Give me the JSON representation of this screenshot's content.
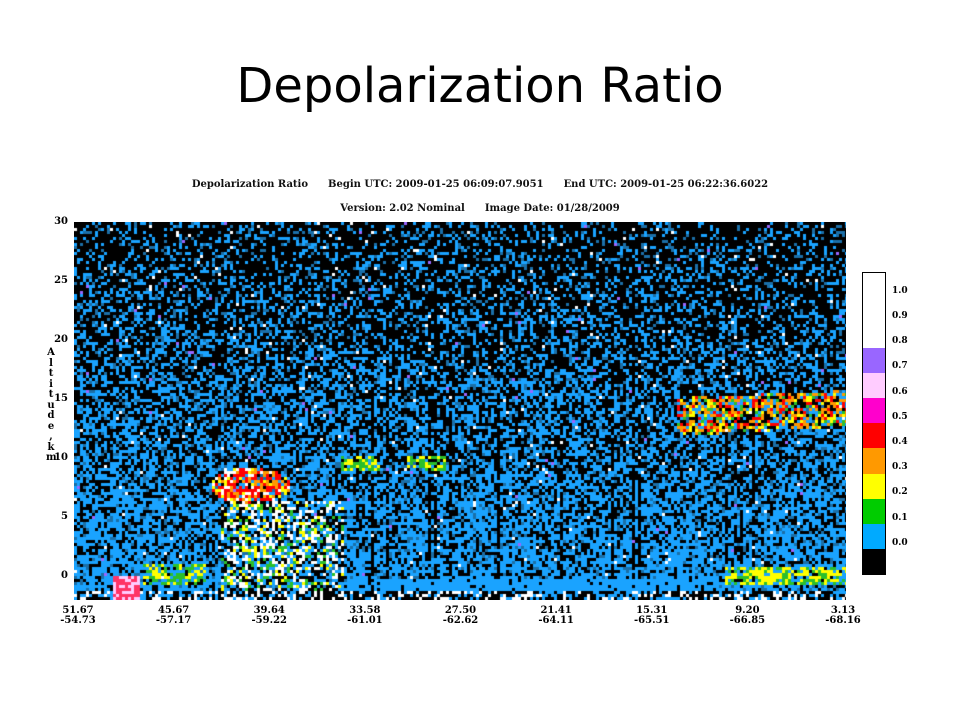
{
  "slide_title": "Depolarization Ratio",
  "header": {
    "product": "Depolarization Ratio",
    "begin": "Begin UTC: 2009-01-25 06:09:07.9051",
    "end": "End UTC: 2009-01-25 06:22:36.6022",
    "version": "Version: 2.02 Nominal",
    "image_date": "Image Date: 01/28/2009"
  },
  "chart_data": {
    "type": "heatmap",
    "title": "Depolarization Ratio",
    "ylabel": "Altitude, km",
    "ylim": [
      -2,
      30
    ],
    "yticks": [
      "30",
      "25",
      "20",
      "15",
      "10",
      "5",
      "0"
    ],
    "xticks": [
      {
        "lat": "51.67",
        "lon": "-54.73"
      },
      {
        "lat": "45.67",
        "lon": "-57.17"
      },
      {
        "lat": "39.64",
        "lon": "-59.22"
      },
      {
        "lat": "33.58",
        "lon": "-61.01"
      },
      {
        "lat": "27.50",
        "lon": "-62.62"
      },
      {
        "lat": "21.41",
        "lon": "-64.11"
      },
      {
        "lat": "15.31",
        "lon": "-65.51"
      },
      {
        "lat": "9.20",
        "lon": "-66.85"
      },
      {
        "lat": "3.13",
        "lon": "-68.16"
      }
    ],
    "colorbar": [
      {
        "label": "1.0",
        "color": "#ffffff"
      },
      {
        "label": "0.9",
        "color": "#ffffff"
      },
      {
        "label": "0.8",
        "color": "#ffffff"
      },
      {
        "label": "0.7",
        "color": "#9966ff"
      },
      {
        "label": "0.6",
        "color": "#ffccff"
      },
      {
        "label": "0.5",
        "color": "#ff00cc"
      },
      {
        "label": "0.4",
        "color": "#ff0000"
      },
      {
        "label": "0.3",
        "color": "#ff9900"
      },
      {
        "label": "0.2",
        "color": "#ffff00"
      },
      {
        "label": "0.1",
        "color": "#00cc00"
      },
      {
        "label": "0.0",
        "color": "#00aaff"
      },
      {
        "label": "",
        "color": "#000000"
      }
    ]
  }
}
